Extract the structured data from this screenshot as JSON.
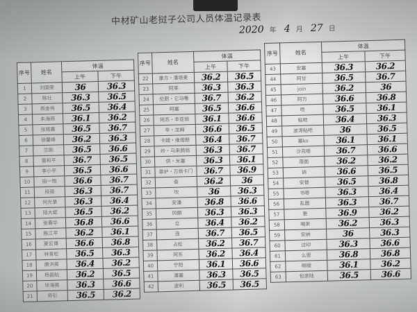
{
  "document": {
    "title": "中材矿山老挝子公司人员体温记录表",
    "date": {
      "year": "2020",
      "year_label": "年",
      "month": "4",
      "month_label": "月",
      "day": "27",
      "day_label": "日"
    },
    "headers": {
      "no": "序号",
      "name": "姓名",
      "temp": "体温",
      "am": "上午",
      "pm": "下午"
    },
    "blocks": [
      [
        {
          "no": "1",
          "name": "刘国荣",
          "am": "36",
          "pm": "36.3"
        },
        {
          "no": "2",
          "name": "陈壮",
          "am": "36.3",
          "pm": "36.5"
        },
        {
          "no": "3",
          "name": "燕金伟",
          "am": "36.5",
          "pm": "36.4"
        },
        {
          "no": "4",
          "name": "朱海燕",
          "am": "36.1",
          "pm": "36.2"
        },
        {
          "no": "5",
          "name": "张塔嘉",
          "am": "36.5",
          "pm": "36.7"
        },
        {
          "no": "6",
          "name": "徐馨峰",
          "am": "36.2",
          "pm": "36.3"
        },
        {
          "no": "7",
          "name": "兰刚",
          "am": "36.5",
          "pm": "36.6"
        },
        {
          "no": "8",
          "name": "雷和平",
          "am": "36.7",
          "pm": "36.5"
        },
        {
          "no": "9",
          "name": "李小平",
          "am": "36.5",
          "pm": "36.6"
        },
        {
          "no": "10",
          "name": "田一翔",
          "am": "36.6",
          "pm": "36.7"
        },
        {
          "no": "11",
          "name": "段丽",
          "am": "36.3",
          "pm": "36.7"
        },
        {
          "no": "12",
          "name": "何光录",
          "am": "36.3",
          "pm": "36.4"
        },
        {
          "no": "13",
          "name": "陆大斌",
          "am": "36.5",
          "pm": "36.2"
        },
        {
          "no": "14",
          "name": "张春华",
          "am": "36.8",
          "pm": "36.6"
        },
        {
          "no": "15",
          "name": "陈江平",
          "am": "36.2",
          "pm": "36.1"
        },
        {
          "no": "16",
          "name": "夏云博",
          "am": "36.6",
          "pm": "36.8"
        },
        {
          "no": "17",
          "name": "林青松",
          "am": "36.5",
          "pm": "36.3"
        },
        {
          "no": "18",
          "name": "唐洪亮",
          "am": "36.4",
          "pm": "36.2"
        },
        {
          "no": "19",
          "name": "杨昌贴",
          "am": "36.2",
          "pm": "36.5"
        },
        {
          "no": "20",
          "name": "毕海亮",
          "am": "36.3",
          "pm": "36.6"
        },
        {
          "no": "21",
          "name": "师引",
          "am": "36.5",
          "pm": "36.2"
        }
      ],
      [
        {
          "no": "22",
          "name": "康方・潘塔麦",
          "am": "36.2",
          "pm": "36.5"
        },
        {
          "no": "23",
          "name": "阿莱",
          "am": "36.3",
          "pm": "36.3"
        },
        {
          "no": "24",
          "name": "伦厨・它马噜",
          "am": "36.7",
          "pm": "36.2"
        },
        {
          "no": "25",
          "name": "阿塞",
          "am": "36.5",
          "pm": "36.6"
        },
        {
          "no": "26",
          "name": "阿苏・辛亚翁",
          "am": "36.1",
          "pm": "36.6"
        },
        {
          "no": "27",
          "name": "辛・龙姆",
          "am": "36.6",
          "pm": "36.5"
        },
        {
          "no": "28",
          "name": "卡姆・维塔朗",
          "am": "36.4",
          "pm": "36.7"
        },
        {
          "no": "29",
          "name": "岭・马来朗翁",
          "am": "36.3",
          "pm": "36.7"
        },
        {
          "no": "30",
          "name": "供・米塞",
          "am": "36.3",
          "pm": "36.1"
        },
        {
          "no": "31",
          "name": "霏护・万翁卡门",
          "am": "36.7",
          "pm": "36.9"
        },
        {
          "no": "32",
          "name": "奋",
          "am": "36.2",
          "pm": "36"
        },
        {
          "no": "33",
          "name": "坎",
          "am": "36",
          "pm": "36.3"
        },
        {
          "no": "34",
          "name": "安潘",
          "am": "36.8",
          "pm": "36.6"
        },
        {
          "no": "35",
          "name": "冈朗",
          "am": "36.3",
          "pm": "36.3"
        },
        {
          "no": "36",
          "name": "立",
          "am": "36.4",
          "pm": "36.2"
        },
        {
          "no": "37",
          "name": "连",
          "am": "36.7",
          "pm": "36.5"
        },
        {
          "no": "38",
          "name": "占松",
          "am": "36.2",
          "pm": "36.7"
        },
        {
          "no": "39",
          "name": "阿东",
          "am": "36.2",
          "pm": "36.4"
        },
        {
          "no": "40",
          "name": "宁阳",
          "am": "36.1",
          "pm": "36.6"
        },
        {
          "no": "41",
          "name": "潘塞",
          "am": "36.3",
          "pm": "36.5"
        },
        {
          "no": "42",
          "name": "波利",
          "am": "36.5",
          "pm": "36.5"
        }
      ],
      [
        {
          "no": "43",
          "name": "安塞",
          "am": "36.3",
          "pm": "36.2"
        },
        {
          "no": "44",
          "name": "阿甘",
          "am": "36.5",
          "pm": "36.7"
        },
        {
          "no": "45",
          "name": "join",
          "am": "36.2",
          "pm": "36"
        },
        {
          "no": "46",
          "name": "阿万",
          "am": "36.6",
          "pm": "36.8"
        },
        {
          "no": "47",
          "name": "喷",
          "am": "36.5",
          "pm": "36.1"
        },
        {
          "no": "48",
          "name": "粘吧",
          "am": "36.4",
          "pm": "36.3"
        },
        {
          "no": "49",
          "name": "波涛粘吧",
          "am": "36",
          "pm": "36.5"
        },
        {
          "no": "50",
          "name": "塞ko",
          "am": "36.1",
          "pm": "36.1"
        },
        {
          "no": "51",
          "name": "沙克嗯",
          "am": "36.7",
          "pm": "36.6"
        },
        {
          "no": "52",
          "name": "落图",
          "am": "36.2",
          "pm": "36.2"
        },
        {
          "no": "53",
          "name": "讷",
          "am": "36.6",
          "pm": "36.5"
        },
        {
          "no": "54",
          "name": "安替",
          "am": "36.5",
          "pm": "36.8"
        },
        {
          "no": "55",
          "name": "书嗯",
          "am": "36.3",
          "pm": "36.4"
        },
        {
          "no": "56",
          "name": "乱图",
          "am": "36.3",
          "pm": "36.7"
        },
        {
          "no": "57",
          "name": "更",
          "am": "36.9",
          "pm": "36.2"
        },
        {
          "no": "58",
          "name": "喝来",
          "am": "36.2",
          "pm": "36.3"
        },
        {
          "no": "59",
          "name": "安纳",
          "am": "36",
          "pm": "36.3"
        },
        {
          "no": "60",
          "name": "过印",
          "am": "36.3",
          "pm": "36.6"
        },
        {
          "no": "61",
          "name": "么恩",
          "am": "36.8",
          "pm": "36.8"
        },
        {
          "no": "62",
          "name": "啊噢",
          "am": "36.1",
          "pm": "36.2"
        },
        {
          "no": "63",
          "name": "包崇陆",
          "am": "36.5",
          "pm": "36.6"
        }
      ]
    ]
  }
}
